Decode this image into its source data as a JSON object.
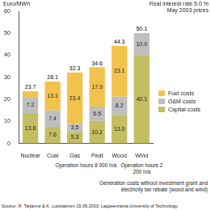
{
  "chart_data": {
    "type": "bar",
    "stacked": true,
    "grid": false,
    "legend": "right",
    "data_labels": true,
    "y_label": "Euro/MWh",
    "subtitle": [
      "Real interest rate 5.0 %",
      "May 2003 prices"
    ],
    "categories": [
      "Nuclear",
      "Coal",
      "Gas",
      "Peat",
      "Wood",
      "Wind"
    ],
    "series": [
      {
        "name": "Capital costs",
        "color": "#c4be62",
        "values": [
          13.8,
          7.6,
          5.3,
          10.2,
          13.0,
          40.1
        ],
        "value_labels": [
          "13.8",
          "7.6",
          "5.3",
          "10.2",
          "13.0",
          "40.1"
        ]
      },
      {
        "name": "O&M costs",
        "color": "#bfbfbf",
        "values": [
          7.2,
          7.4,
          3.5,
          6.5,
          8.2,
          10.0
        ],
        "value_labels": [
          "7.2",
          "7.4",
          "3.5",
          "6.5",
          "8.2",
          "10.0"
        ]
      },
      {
        "name": "Fuel costs",
        "color": "#f1c34c",
        "values": [
          2.7,
          13.1,
          23.4,
          17.9,
          23.1,
          null
        ],
        "value_labels": [
          null,
          "13.1",
          "23.4",
          "17.9",
          "23.1",
          null
        ]
      }
    ],
    "totals": [
      23.7,
      28.1,
      32.3,
      34.6,
      44.3,
      50.1
    ],
    "ylim": [
      0,
      60
    ],
    "yticks": [
      0,
      10,
      20,
      30,
      40,
      50,
      60
    ],
    "annotations": [
      {
        "text": "Operation hours 8 000 h/a",
        "from": "Coal",
        "to": "Wood"
      },
      {
        "text": "Operation hours 2 200 h/a",
        "from": "Wind",
        "to": "Wind"
      }
    ],
    "notes": [
      "Generation costs without investment grant and electricity tax rebate (wood and wind)"
    ],
    "source": "Source: R. Tarjanne & K. Luostarinen 15.05.2003; Lappeenranta University of Technology"
  }
}
